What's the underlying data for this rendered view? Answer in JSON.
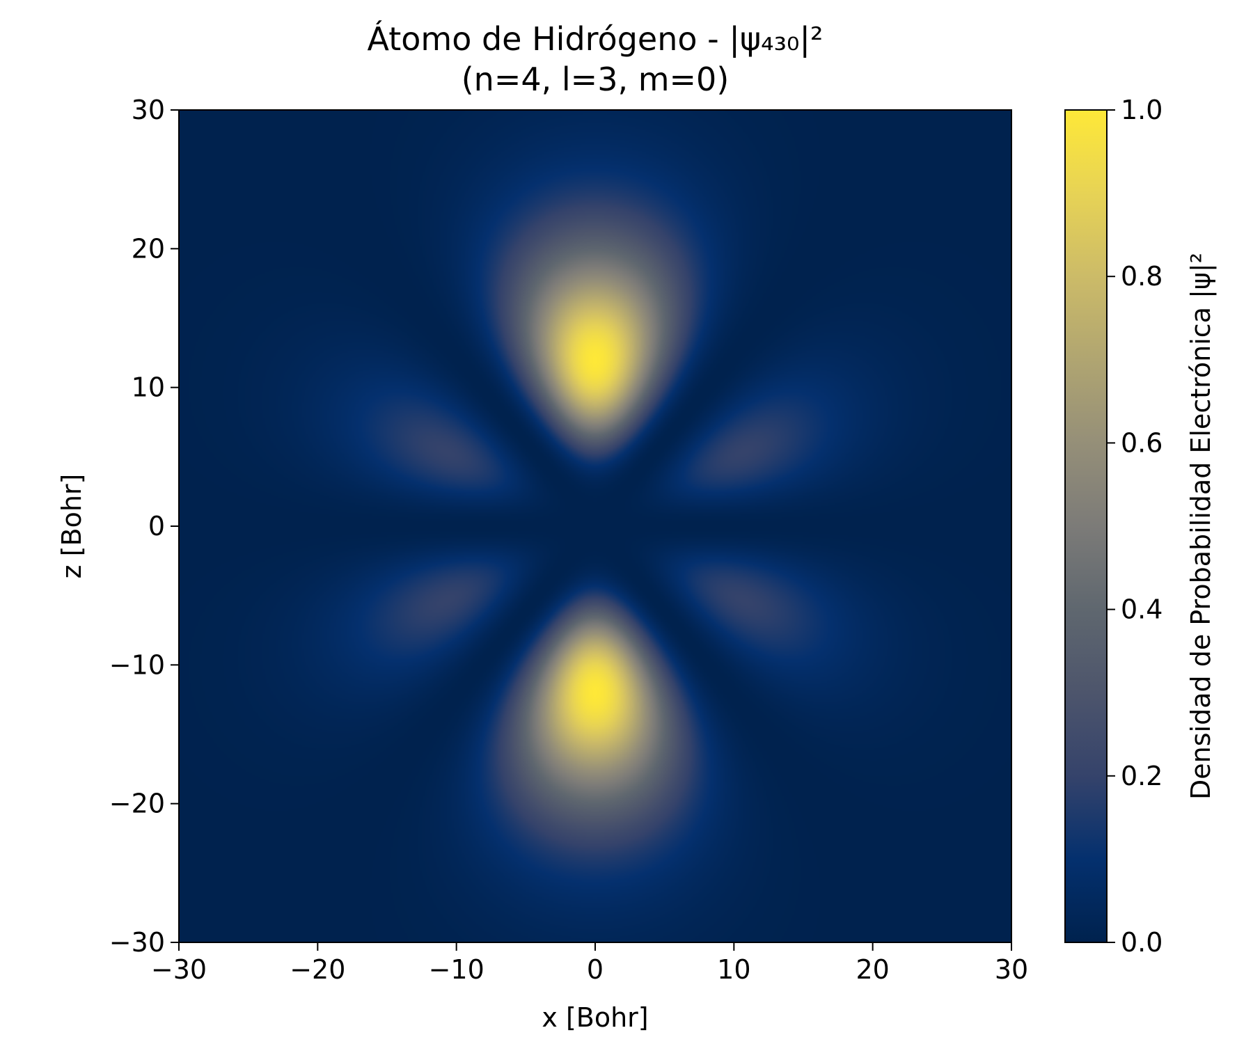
{
  "chart_data": {
    "type": "heatmap",
    "title": "Átomo de Hidrógeno - |ψ₄₃₀|²",
    "subtitle": "(n=4, l=3, m=0)",
    "xlabel": "x [Bohr]",
    "ylabel": "z [Bohr]",
    "xlim": [
      -30,
      30
    ],
    "ylim": [
      -30,
      30
    ],
    "x_ticks": [
      -30,
      -20,
      -10,
      0,
      10,
      20,
      30
    ],
    "y_ticks": [
      -30,
      -20,
      -10,
      0,
      10,
      20,
      30
    ],
    "x_tick_labels": [
      "−30",
      "−20",
      "−10",
      "0",
      "10",
      "20",
      "30"
    ],
    "y_tick_labels": [
      "−30",
      "−20",
      "−10",
      "0",
      "10",
      "20",
      "30"
    ],
    "grid": false,
    "colormap": "cividis",
    "function": {
      "n": 4,
      "l": 3,
      "m": 0
    },
    "colorbar": {
      "label": "Densidad de Probabilidad Electrónica |ψ|²",
      "range": [
        0.0,
        1.0
      ],
      "ticks": [
        0.0,
        0.2,
        0.4,
        0.6,
        0.8,
        1.0
      ],
      "tick_labels": [
        "0.0",
        "0.2",
        "0.4",
        "0.6",
        "0.8",
        "1.0"
      ],
      "position": "right"
    },
    "peaks": [
      {
        "x": 0,
        "z": 10,
        "value": 1.0
      },
      {
        "x": 0,
        "z": -10,
        "value": 1.0
      },
      {
        "x": -10,
        "z": 5,
        "value": 0.25
      },
      {
        "x": 10,
        "z": 5,
        "value": 0.25
      },
      {
        "x": -10,
        "z": -5,
        "value": 0.25
      },
      {
        "x": 10,
        "z": -5,
        "value": 0.25
      }
    ],
    "colors": {
      "low": "#00224e",
      "mid": "#7d7c78",
      "high": "#fee838"
    }
  }
}
